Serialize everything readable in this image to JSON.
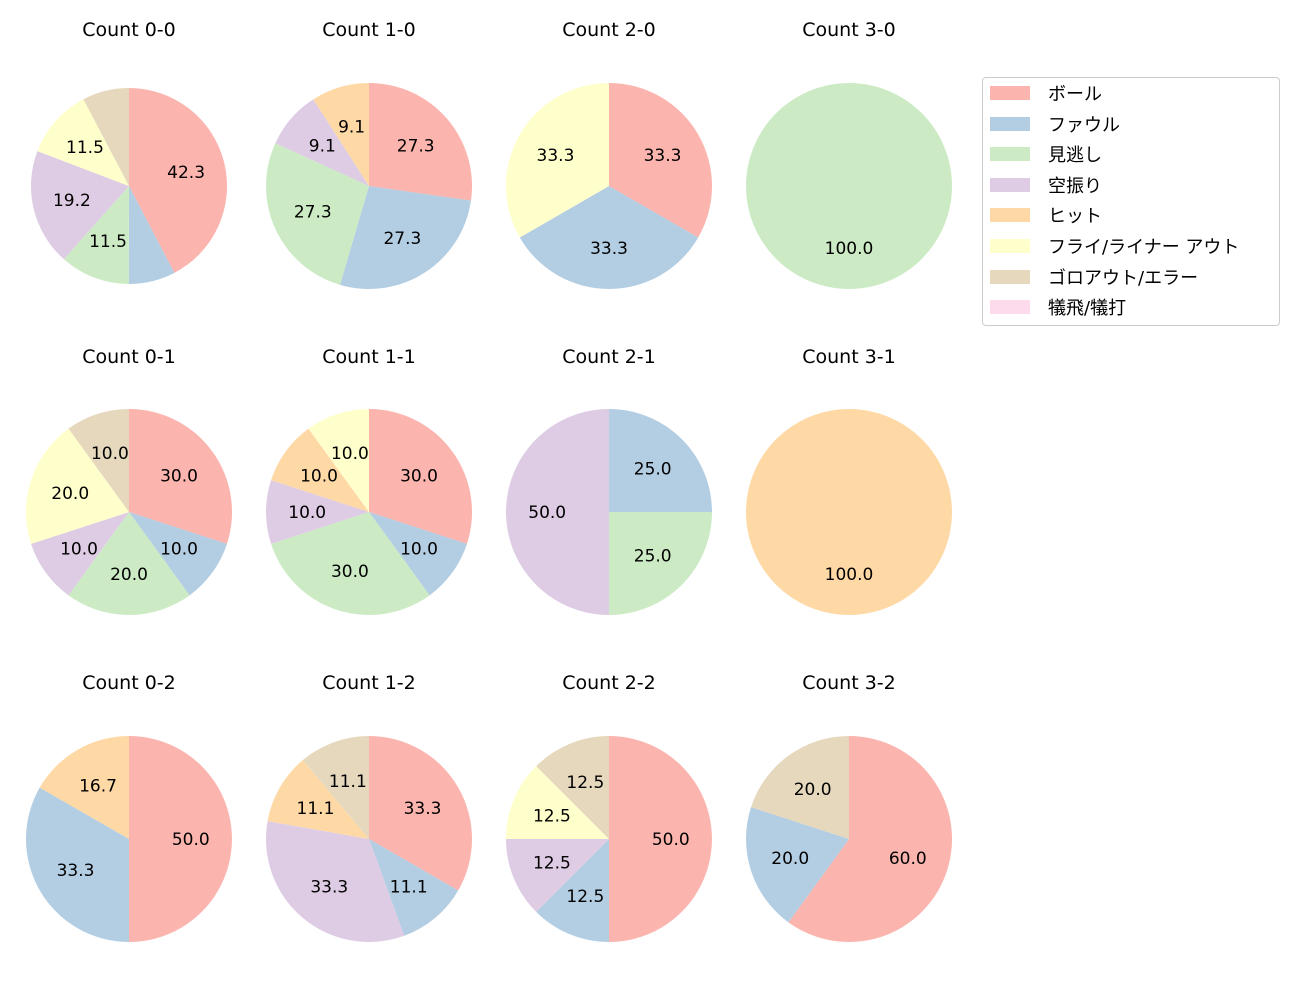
{
  "chart_data": {
    "type": "pie",
    "categories": [
      "ボール",
      "ファウル",
      "見逃し",
      "空振り",
      "ヒット",
      "フライ/ライナー アウト",
      "ゴロアウト/エラー",
      "犠飛/犠打"
    ],
    "colors": [
      "#fbb4ae",
      "#b3cde3",
      "#ccebc5",
      "#decbe4",
      "#fed9a6",
      "#ffffcc",
      "#e5d8bd",
      "#fddaec"
    ],
    "legend_position": "right",
    "charts": [
      {
        "title": "Count 0-0",
        "values": [
          42.3,
          7.7,
          11.5,
          19.2,
          0,
          11.5,
          7.7,
          0
        ]
      },
      {
        "title": "Count 1-0",
        "values": [
          27.3,
          27.3,
          27.3,
          9.1,
          9.1,
          0,
          0,
          0
        ]
      },
      {
        "title": "Count 2-0",
        "values": [
          33.3,
          33.3,
          0,
          0,
          0,
          33.3,
          0,
          0
        ]
      },
      {
        "title": "Count 3-0",
        "values": [
          0,
          0,
          100.0,
          0,
          0,
          0,
          0,
          0
        ]
      },
      {
        "title": "Count 0-1",
        "values": [
          30.0,
          10.0,
          20.0,
          10.0,
          0,
          20.0,
          10.0,
          0
        ]
      },
      {
        "title": "Count 1-1",
        "values": [
          30.0,
          10.0,
          30.0,
          10.0,
          10.0,
          10.0,
          0,
          0
        ]
      },
      {
        "title": "Count 2-1",
        "values": [
          0,
          25.0,
          25.0,
          50.0,
          0,
          0,
          0,
          0
        ]
      },
      {
        "title": "Count 3-1",
        "values": [
          0,
          0,
          0,
          0,
          100.0,
          0,
          0,
          0
        ]
      },
      {
        "title": "Count 0-2",
        "values": [
          50.0,
          33.3,
          0,
          0,
          16.7,
          0,
          0,
          0
        ]
      },
      {
        "title": "Count 1-2",
        "values": [
          33.3,
          11.1,
          0,
          33.3,
          11.1,
          0,
          11.1,
          0
        ]
      },
      {
        "title": "Count 2-2",
        "values": [
          50.0,
          12.5,
          0,
          12.5,
          0,
          12.5,
          12.5,
          0
        ]
      },
      {
        "title": "Count 3-2",
        "values": [
          60.0,
          20.0,
          0,
          0,
          0,
          0,
          20.0,
          0
        ]
      }
    ]
  }
}
